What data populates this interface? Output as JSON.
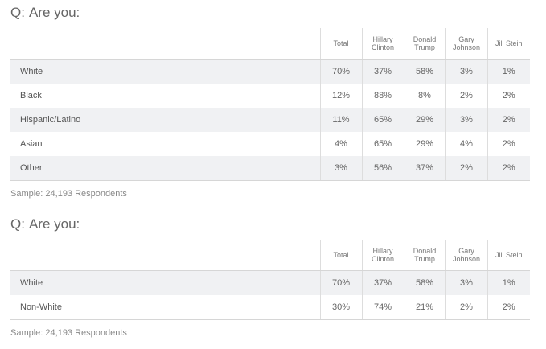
{
  "polls": [
    {
      "question_prefix": "Q:",
      "question": "Are you:",
      "columns": [
        "Total",
        "Hillary Clinton",
        "Donald Trump",
        "Gary Johnson",
        "Jill Stein"
      ],
      "rows": [
        {
          "label": "White",
          "values": [
            "70%",
            "37%",
            "58%",
            "3%",
            "1%"
          ]
        },
        {
          "label": "Black",
          "values": [
            "12%",
            "88%",
            "8%",
            "2%",
            "2%"
          ]
        },
        {
          "label": "Hispanic/Latino",
          "values": [
            "11%",
            "65%",
            "29%",
            "3%",
            "2%"
          ]
        },
        {
          "label": "Asian",
          "values": [
            "4%",
            "65%",
            "29%",
            "4%",
            "2%"
          ]
        },
        {
          "label": "Other",
          "values": [
            "3%",
            "56%",
            "37%",
            "2%",
            "2%"
          ]
        }
      ],
      "sample": "Sample: 24,193 Respondents"
    },
    {
      "question_prefix": "Q:",
      "question": "Are you:",
      "columns": [
        "Total",
        "Hillary Clinton",
        "Donald Trump",
        "Gary Johnson",
        "Jill Stein"
      ],
      "rows": [
        {
          "label": "White",
          "values": [
            "70%",
            "37%",
            "58%",
            "3%",
            "1%"
          ]
        },
        {
          "label": "Non-White",
          "values": [
            "30%",
            "74%",
            "21%",
            "2%",
            "2%"
          ]
        }
      ],
      "sample": "Sample: 24,193 Respondents"
    }
  ]
}
